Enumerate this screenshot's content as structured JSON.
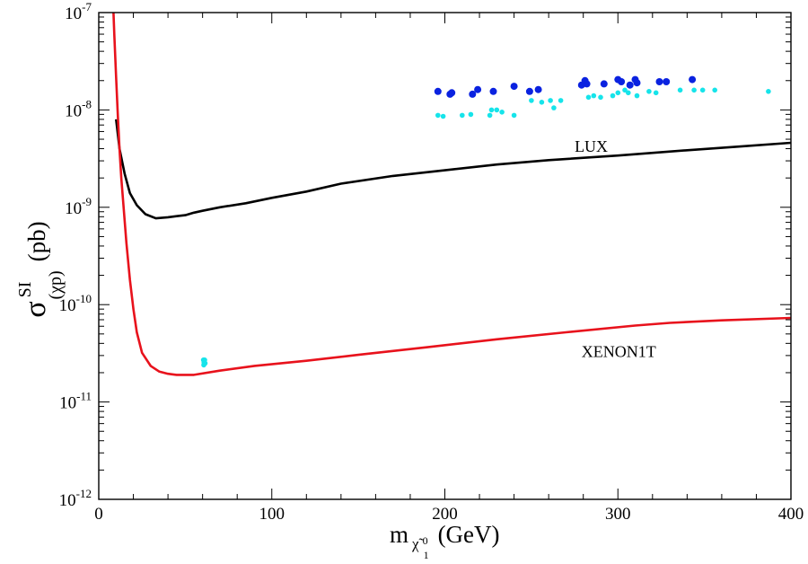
{
  "chart_data": {
    "type": "line",
    "xscale": "linear",
    "yscale": "log",
    "xlim": [
      0,
      400
    ],
    "ylim": [
      1e-12,
      1e-07
    ],
    "x_ticks": [
      {
        "value": 0,
        "label": "0"
      },
      {
        "value": 100,
        "label": "100"
      },
      {
        "value": 200,
        "label": "200"
      },
      {
        "value": 300,
        "label": "300"
      },
      {
        "value": 400,
        "label": "400"
      }
    ],
    "y_ticks": [
      {
        "value": 1e-12,
        "base": "10",
        "exp": "-12"
      },
      {
        "value": 1e-11,
        "base": "10",
        "exp": "-11"
      },
      {
        "value": 1e-10,
        "base": "10",
        "exp": "-10"
      },
      {
        "value": 1e-09,
        "base": "10",
        "exp": "-9"
      },
      {
        "value": 1e-08,
        "base": "10",
        "exp": "-8"
      },
      {
        "value": 1e-07,
        "base": "10",
        "exp": "-7"
      }
    ],
    "ylabel": {
      "main": "σ",
      "sup": "SI",
      "sub": "(χp)",
      "unit": "(pb)"
    },
    "xlabel": {
      "main": "m",
      "sub": "χ̃",
      "sub_sup": "0",
      "sub_sub": "1",
      "unit": "(GeV)"
    },
    "series": [
      {
        "name": "LUX",
        "kind": "line",
        "color": "#000000",
        "x": [
          10,
          12,
          15,
          18,
          22,
          27,
          33,
          40,
          45,
          50,
          55,
          60,
          70,
          85,
          100,
          120,
          140,
          170,
          200,
          230,
          260,
          300,
          340,
          370,
          400
        ],
        "y": [
          8e-09,
          4e-09,
          2.2e-09,
          1.4e-09,
          1.05e-09,
          8.5e-10,
          7.7e-10,
          7.9e-10,
          8.1e-10,
          8.3e-10,
          8.8e-10,
          9.2e-10,
          1e-09,
          1.1e-09,
          1.25e-09,
          1.45e-09,
          1.75e-09,
          2.1e-09,
          2.4e-09,
          2.75e-09,
          3.05e-09,
          3.4e-09,
          3.85e-09,
          4.2e-09,
          4.6e-09
        ]
      },
      {
        "name": "XENON1T",
        "kind": "line",
        "color": "#e8121c",
        "x": [
          8.5,
          9,
          10,
          11,
          12,
          13,
          14,
          16,
          18,
          20,
          22,
          25,
          30,
          35,
          40,
          45,
          55,
          70,
          90,
          120,
          150,
          190,
          230,
          270,
          310,
          330,
          360,
          400
        ],
        "y": [
          1e-07,
          6e-08,
          2.2e-08,
          9e-09,
          4e-09,
          2e-09,
          1.2e-09,
          4.3e-10,
          1.8e-10,
          9e-11,
          5.2e-11,
          3.2e-11,
          2.35e-11,
          2.05e-11,
          1.95e-11,
          1.9e-11,
          1.9e-11,
          2.1e-11,
          2.35e-11,
          2.65e-11,
          3.05e-11,
          3.65e-11,
          4.4e-11,
          5.2e-11,
          6.1e-11,
          6.5e-11,
          6.9e-11,
          7.3e-11
        ]
      },
      {
        "name": "points-blue",
        "kind": "scatter",
        "color": "#0a22e0",
        "x": [
          196,
          203,
          204,
          216,
          219,
          228,
          240,
          249,
          254,
          279,
          281,
          282,
          292,
          300,
          302,
          307,
          310,
          311,
          324,
          328,
          343
        ],
        "y": [
          1.55e-08,
          1.45e-08,
          1.5e-08,
          1.45e-08,
          1.62e-08,
          1.55e-08,
          1.75e-08,
          1.55e-08,
          1.62e-08,
          1.8e-08,
          2e-08,
          1.85e-08,
          1.85e-08,
          2.05e-08,
          1.95e-08,
          1.8e-08,
          2.05e-08,
          1.9e-08,
          1.95e-08,
          1.95e-08,
          2.05e-08
        ]
      },
      {
        "name": "points-cyan",
        "kind": "scatter",
        "color": "#16e4ea",
        "x": [
          196,
          199,
          210,
          215,
          226,
          227,
          230,
          233,
          240,
          250,
          256,
          261,
          263,
          267,
          283,
          286,
          290,
          297,
          300,
          304,
          306,
          311,
          318,
          322,
          336,
          344,
          349,
          356,
          387,
          60.5,
          60.8,
          61.2,
          61.5,
          60.7
        ],
        "y": [
          8.8e-09,
          8.6e-09,
          8.8e-09,
          9e-09,
          8.8e-09,
          1e-08,
          1e-08,
          9.5e-09,
          8.8e-09,
          1.25e-08,
          1.2e-08,
          1.25e-08,
          1.05e-08,
          1.25e-08,
          1.35e-08,
          1.4e-08,
          1.35e-08,
          1.4e-08,
          1.5e-08,
          1.6e-08,
          1.5e-08,
          1.4e-08,
          1.55e-08,
          1.5e-08,
          1.6e-08,
          1.6e-08,
          1.6e-08,
          1.6e-08,
          1.55e-08,
          2.7e-11,
          2.55e-11,
          2.7e-11,
          2.5e-11,
          2.4e-11
        ]
      }
    ],
    "annotations": [
      {
        "text": "LUX",
        "x": 275,
        "y": 3.7e-09
      },
      {
        "text": "XENON1T",
        "x": 279,
        "y": 2.9e-11
      }
    ]
  }
}
